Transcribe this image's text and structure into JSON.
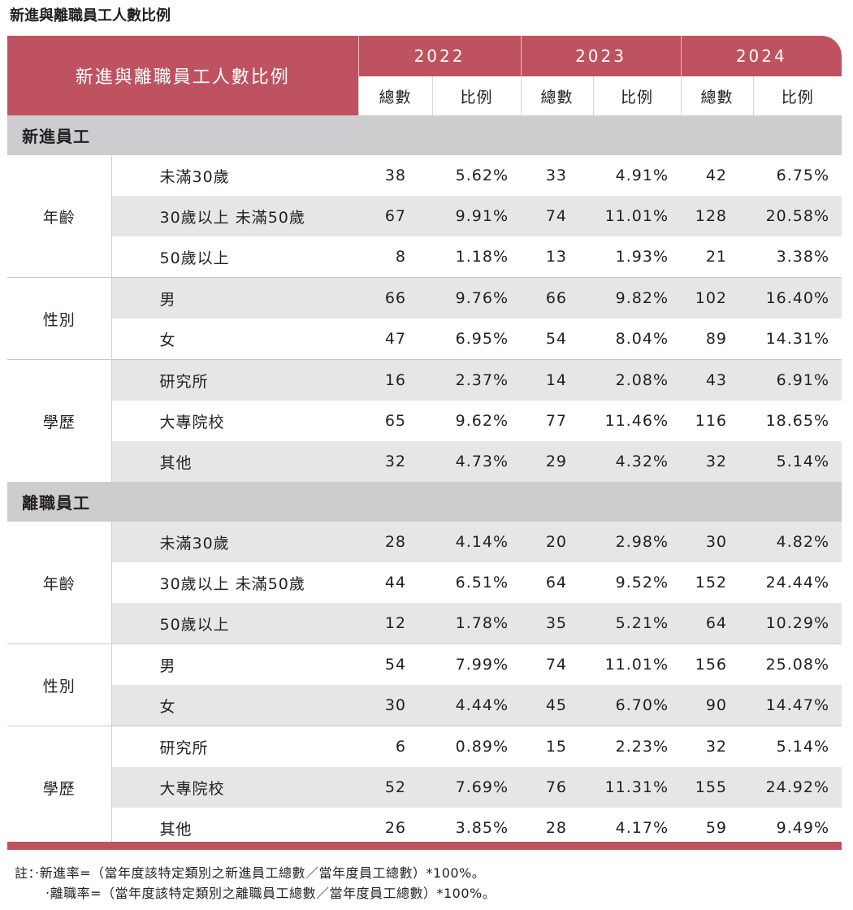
{
  "title": "新進與離職員工人數比例",
  "header": {
    "title": "新進與離職員工人數比例",
    "years": [
      "2022",
      "2023",
      "2024"
    ],
    "sub_total": "總數",
    "sub_ratio": "比例"
  },
  "sections": [
    {
      "name": "新進員工",
      "groups": [
        {
          "name": "年齡",
          "rows": [
            {
              "label": "未滿30歲",
              "v": [
                "38",
                "5.62%",
                "33",
                "4.91%",
                "42",
                "6.75%"
              ]
            },
            {
              "label": "30歲以上 未滿50歲",
              "v": [
                "67",
                "9.91%",
                "74",
                "11.01%",
                "128",
                "20.58%"
              ]
            },
            {
              "label": "50歲以上",
              "v": [
                "8",
                "1.18%",
                "13",
                "1.93%",
                "21",
                "3.38%"
              ]
            }
          ]
        },
        {
          "name": "性別",
          "rows": [
            {
              "label": "男",
              "v": [
                "66",
                "9.76%",
                "66",
                "9.82%",
                "102",
                "16.40%"
              ]
            },
            {
              "label": "女",
              "v": [
                "47",
                "6.95%",
                "54",
                "8.04%",
                "89",
                "14.31%"
              ]
            }
          ]
        },
        {
          "name": "學歷",
          "rows": [
            {
              "label": "研究所",
              "v": [
                "16",
                "2.37%",
                "14",
                "2.08%",
                "43",
                "6.91%"
              ]
            },
            {
              "label": "大專院校",
              "v": [
                "65",
                "9.62%",
                "77",
                "11.46%",
                "116",
                "18.65%"
              ]
            },
            {
              "label": "其他",
              "v": [
                "32",
                "4.73%",
                "29",
                "4.32%",
                "32",
                "5.14%"
              ]
            }
          ]
        }
      ]
    },
    {
      "name": "離職員工",
      "groups": [
        {
          "name": "年齡",
          "rows": [
            {
              "label": "未滿30歲",
              "v": [
                "28",
                "4.14%",
                "20",
                "2.98%",
                "30",
                "4.82%"
              ]
            },
            {
              "label": "30歲以上 未滿50歲",
              "v": [
                "44",
                "6.51%",
                "64",
                "9.52%",
                "152",
                "24.44%"
              ]
            },
            {
              "label": "50歲以上",
              "v": [
                "12",
                "1.78%",
                "35",
                "5.21%",
                "64",
                "10.29%"
              ]
            }
          ]
        },
        {
          "name": "性別",
          "rows": [
            {
              "label": "男",
              "v": [
                "54",
                "7.99%",
                "74",
                "11.01%",
                "156",
                "25.08%"
              ]
            },
            {
              "label": "女",
              "v": [
                "30",
                "4.44%",
                "45",
                "6.70%",
                "90",
                "14.47%"
              ]
            }
          ]
        },
        {
          "name": "學歷",
          "rows": [
            {
              "label": "研究所",
              "v": [
                "6",
                "0.89%",
                "15",
                "2.23%",
                "32",
                "5.14%"
              ]
            },
            {
              "label": "大專院校",
              "v": [
                "52",
                "7.69%",
                "76",
                "11.31%",
                "155",
                "24.92%"
              ]
            },
            {
              "label": "其他",
              "v": [
                "26",
                "3.85%",
                "28",
                "4.17%",
                "59",
                "9.49%"
              ]
            }
          ]
        }
      ]
    }
  ],
  "notes": {
    "prefix": "註：",
    "line1": "‧新進率=（當年度該特定類別之新進員工總數／當年度員工總數）*100%。",
    "line2": "‧離職率=（當年度該特定類別之離職員工總數／當年度員工總數）*100%。"
  },
  "colors": {
    "accent": "#bf5260",
    "section": "#cdcdcf",
    "stripe": "#e6e6e8"
  }
}
